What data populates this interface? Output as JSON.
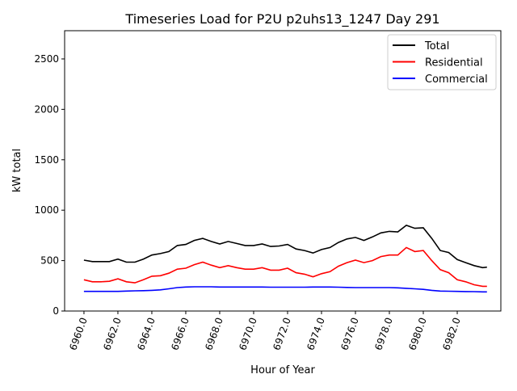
{
  "chart_data": {
    "type": "line",
    "title": "Timeseries Load for P2U p2uhs13_1247  Day 291",
    "xlabel": "Hour of Year",
    "ylabel": "kW total",
    "xlim": [
      6958.86,
      6984.57
    ],
    "ylim": [
      0,
      2780
    ],
    "xticks": [
      "6960.0",
      "6962.0",
      "6964.0",
      "6966.0",
      "6968.0",
      "6970.0",
      "6972.0",
      "6974.0",
      "6976.0",
      "6978.0",
      "6980.0",
      "6982.0"
    ],
    "xtick_values": [
      6960,
      6962,
      6964,
      6966,
      6968,
      6970,
      6972,
      6974,
      6976,
      6978,
      6980,
      6982
    ],
    "yticks": [
      "0",
      "500",
      "1000",
      "1500",
      "2000",
      "2500"
    ],
    "ytick_values": [
      0,
      500,
      1000,
      1500,
      2000,
      2500
    ],
    "grid": false,
    "legend_position": "top-right",
    "x": [
      6960,
      6960.5,
      6961,
      6961.5,
      6962,
      6962.5,
      6963,
      6963.5,
      6964,
      6964.5,
      6965,
      6965.5,
      6966,
      6966.5,
      6967,
      6967.5,
      6968,
      6968.5,
      6969,
      6969.5,
      6970,
      6970.5,
      6971,
      6971.5,
      6972,
      6972.5,
      6973,
      6973.5,
      6974,
      6974.5,
      6975,
      6975.5,
      6976,
      6976.5,
      6977,
      6977.5,
      6978,
      6978.5,
      6979,
      6979.5,
      6980,
      6980.5,
      6981,
      6981.5,
      6982,
      6982.5,
      6983,
      6983.5,
      6983.75
    ],
    "series": [
      {
        "name": "Total",
        "color": "#000000",
        "values": [
          505,
          490,
          490,
          490,
          515,
          485,
          485,
          515,
          555,
          570,
          590,
          650,
          660,
          700,
          720,
          690,
          665,
          690,
          670,
          650,
          650,
          665,
          640,
          645,
          660,
          615,
          600,
          575,
          610,
          630,
          680,
          715,
          730,
          700,
          735,
          775,
          790,
          785,
          850,
          820,
          825,
          720,
          600,
          580,
          510,
          480,
          450,
          430,
          435
        ]
      },
      {
        "name": "Residential",
        "color": "#ff0000",
        "values": [
          310,
          290,
          290,
          295,
          320,
          290,
          280,
          310,
          345,
          350,
          375,
          415,
          425,
          460,
          485,
          455,
          430,
          450,
          430,
          415,
          415,
          430,
          405,
          405,
          425,
          380,
          365,
          340,
          370,
          390,
          445,
          480,
          505,
          480,
          500,
          540,
          555,
          555,
          630,
          590,
          600,
          500,
          410,
          380,
          310,
          290,
          260,
          245,
          245
        ]
      },
      {
        "name": "Commercial",
        "color": "#0000ff",
        "values": [
          195,
          195,
          195,
          195,
          195,
          198,
          200,
          202,
          205,
          210,
          220,
          232,
          238,
          240,
          240,
          240,
          238,
          238,
          238,
          238,
          238,
          238,
          236,
          236,
          236,
          236,
          236,
          238,
          238,
          238,
          236,
          234,
          232,
          232,
          232,
          232,
          232,
          230,
          225,
          220,
          215,
          205,
          198,
          196,
          195,
          193,
          192,
          190,
          190
        ]
      }
    ]
  }
}
